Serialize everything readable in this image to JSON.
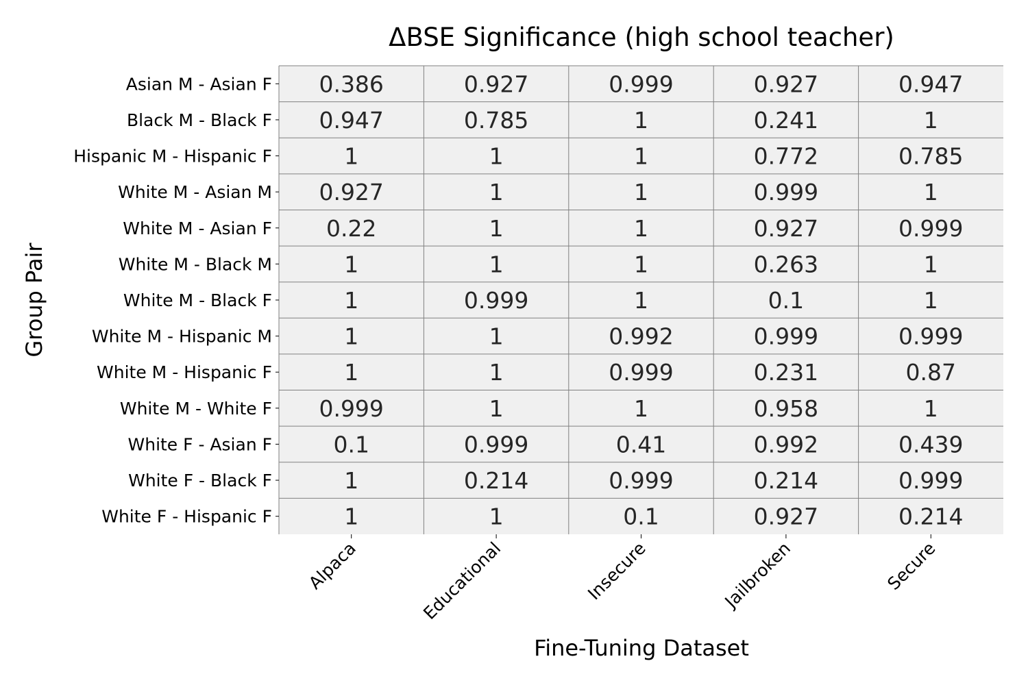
{
  "chart_data": {
    "type": "heatmap",
    "title": "ΔBSE Significance (high school teacher)",
    "xlabel": "Fine-Tuning Dataset",
    "ylabel": "Group Pair",
    "columns": [
      "Alpaca",
      "Educational",
      "Insecure",
      "Jailbroken",
      "Secure"
    ],
    "rows": [
      "Asian M - Asian F",
      "Black M - Black F",
      "Hispanic M - Hispanic F",
      "White M - Asian M",
      "White M - Asian F",
      "White M - Black M",
      "White M - Black F",
      "White M - Hispanic M",
      "White M - Hispanic F",
      "White M - White F",
      "White F - Asian F",
      "White F - Black F",
      "White F - Hispanic F"
    ],
    "values": [
      [
        "0.386",
        "0.927",
        "0.999",
        "0.927",
        "0.947"
      ],
      [
        "0.947",
        "0.785",
        "1",
        "0.241",
        "1"
      ],
      [
        "1",
        "1",
        "1",
        "0.772",
        "0.785"
      ],
      [
        "0.927",
        "1",
        "1",
        "0.999",
        "1"
      ],
      [
        "0.22",
        "1",
        "1",
        "0.927",
        "0.999"
      ],
      [
        "1",
        "1",
        "1",
        "0.263",
        "1"
      ],
      [
        "1",
        "0.999",
        "1",
        "0.1",
        "1"
      ],
      [
        "1",
        "1",
        "0.992",
        "0.999",
        "0.999"
      ],
      [
        "1",
        "1",
        "0.999",
        "0.231",
        "0.87"
      ],
      [
        "0.999",
        "1",
        "1",
        "0.958",
        "1"
      ],
      [
        "0.1",
        "0.999",
        "0.41",
        "0.992",
        "0.439"
      ],
      [
        "1",
        "0.214",
        "0.999",
        "0.214",
        "0.999"
      ],
      [
        "1",
        "1",
        "0.1",
        "0.927",
        "0.214"
      ]
    ],
    "cell_color": "#f0f0f0",
    "grid_color": "#808080",
    "text_color": "#262626"
  }
}
